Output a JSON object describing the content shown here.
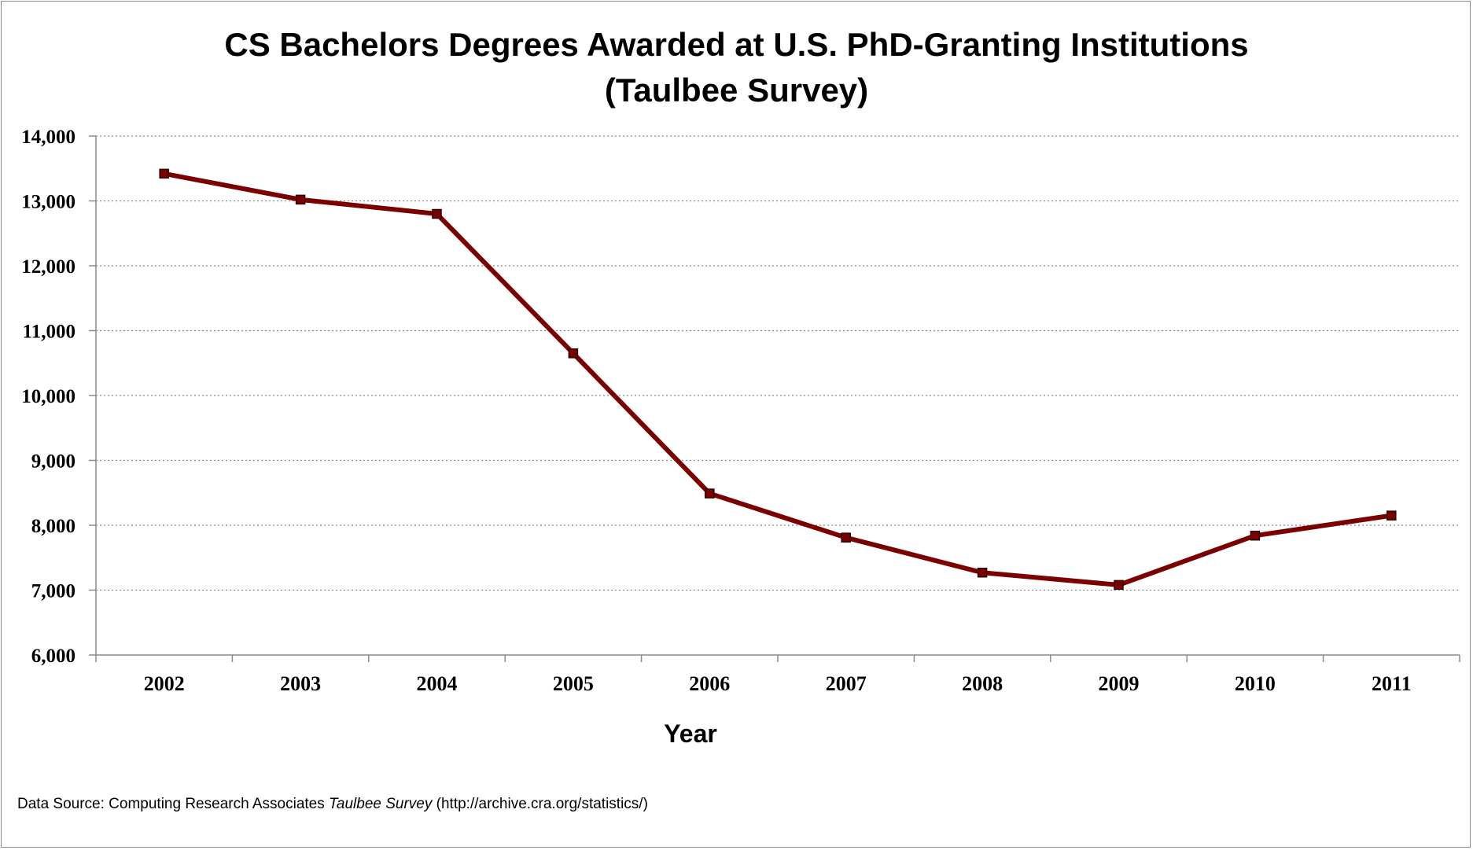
{
  "chart_data": {
    "type": "line",
    "title_line1": "CS Bachelors Degrees Awarded at U.S. PhD-Granting Institutions",
    "title_line2": "(Taulbee Survey)",
    "xlabel": "Year",
    "ylabel": "",
    "categories": [
      "2002",
      "2003",
      "2004",
      "2005",
      "2006",
      "2007",
      "2008",
      "2009",
      "2010",
      "2011"
    ],
    "series": [
      {
        "values": [
          13420,
          13020,
          12800,
          10650,
          8490,
          7810,
          7270,
          7080,
          7840,
          8150
        ],
        "color": "#7b0000"
      }
    ],
    "ylim": [
      6000,
      14000
    ],
    "yticks": [
      6000,
      7000,
      8000,
      9000,
      10000,
      11000,
      12000,
      13000,
      14000
    ],
    "ytick_labels": [
      "6,000",
      "7,000",
      "8,000",
      "9,000",
      "10,000",
      "11,000",
      "12,000",
      "13,000",
      "14,000"
    ],
    "grid": "horizontal dotted",
    "legend": "none"
  },
  "source": {
    "prefix": "Data Source: Computing Research Associates ",
    "italic": "Taulbee Survey",
    "suffix": " (http://archive.cra.org/statistics/)"
  }
}
